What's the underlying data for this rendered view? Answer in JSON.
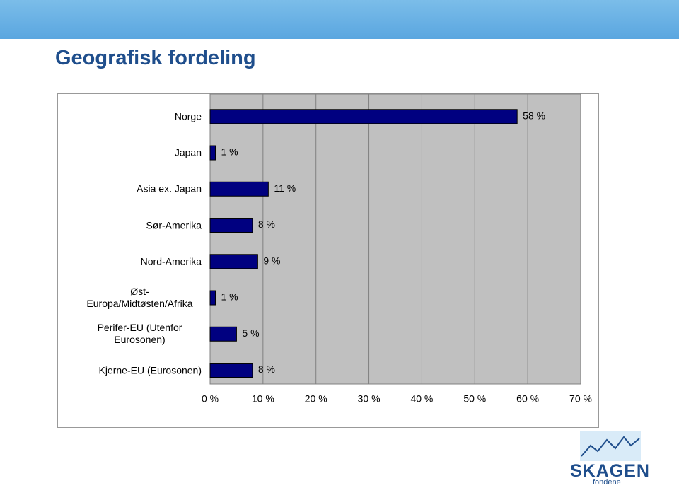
{
  "chart_data": {
    "type": "bar",
    "orientation": "horizontal",
    "title": "Geografisk fordeling",
    "categories": [
      "Norge",
      "Japan",
      "Asia ex. Japan",
      "Sør-Amerika",
      "Nord-Amerika",
      "Øst-Europa/Midtøsten/Afrika",
      "Perifer-EU (Utenfor Eurosonen)",
      "Kjerne-EU (Eurosonen)"
    ],
    "values": [
      58,
      1,
      11,
      8,
      9,
      1,
      5,
      8
    ],
    "value_labels": [
      "58 %",
      "1 %",
      "11 %",
      "8 %",
      "9 %",
      "1 %",
      "5 %",
      "8 %"
    ],
    "color": "#000080",
    "xlim": [
      0,
      70
    ],
    "xticks": [
      {
        "value": 0,
        "label": "0 %"
      },
      {
        "value": 10,
        "label": "10 %"
      },
      {
        "value": 20,
        "label": "20 %"
      },
      {
        "value": 30,
        "label": "30 %"
      },
      {
        "value": 40,
        "label": "40 %"
      },
      {
        "value": 50,
        "label": "50 %"
      },
      {
        "value": 60,
        "label": "60 %"
      },
      {
        "value": 70,
        "label": "70 %"
      }
    ],
    "grid": true
  },
  "logo": {
    "name": "SKAGEN",
    "tagline": "fondene"
  }
}
